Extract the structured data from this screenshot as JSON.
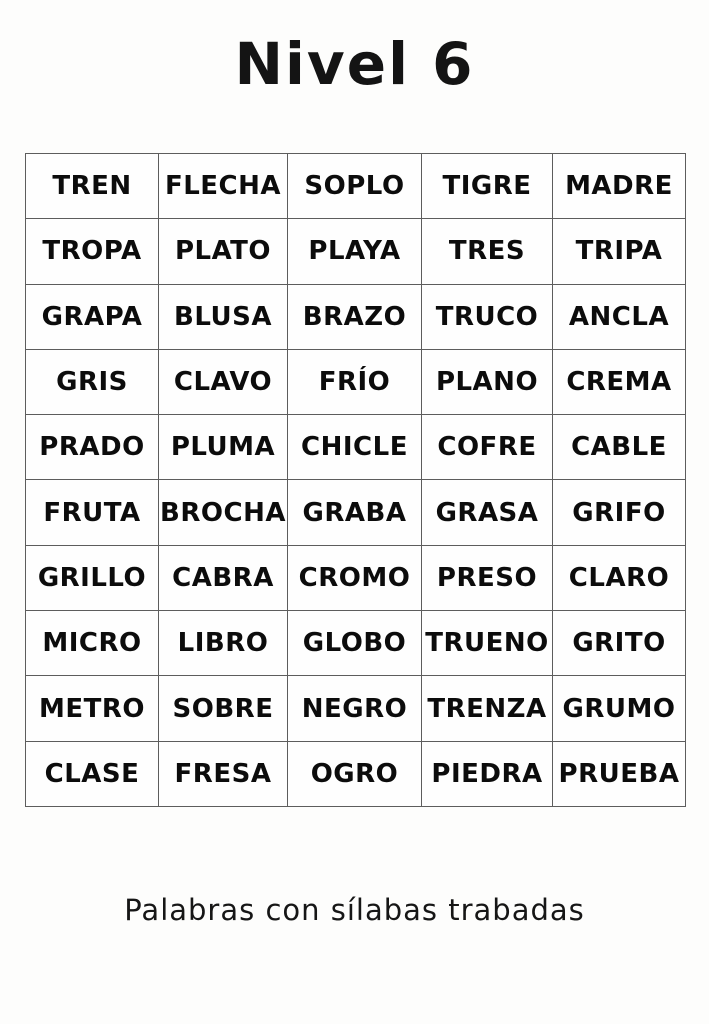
{
  "page": {
    "title": "Nivel 6",
    "caption": "Palabras con sílabas trabadas"
  },
  "grid": {
    "rows": [
      [
        "TREN",
        "FLECHA",
        "SOPLO",
        "TIGRE",
        "MADRE"
      ],
      [
        "TROPA",
        "PLATO",
        "PLAYA",
        "TRES",
        "TRIPA"
      ],
      [
        "GRAPA",
        "BLUSA",
        "BRAZO",
        "TRUCO",
        "ANCLA"
      ],
      [
        "GRIS",
        "CLAVO",
        "FRÍO",
        "PLANO",
        "CREMA"
      ],
      [
        "PRADO",
        "PLUMA",
        "CHICLE",
        "COFRE",
        "CABLE"
      ],
      [
        "FRUTA",
        "BROCHA",
        "GRABA",
        "GRASA",
        "GRIFO"
      ],
      [
        "GRILLO",
        "CABRA",
        "CROMO",
        "PRESO",
        "CLARO"
      ],
      [
        "MICRO",
        "LIBRO",
        "GLOBO",
        "TRUENO",
        "GRITO"
      ],
      [
        "METRO",
        "SOBRE",
        "NEGRO",
        "TRENZA",
        "GRUMO"
      ],
      [
        "CLASE",
        "FRESA",
        "OGRO",
        "PIEDRA",
        "PRUEBA"
      ]
    ]
  },
  "colors": {
    "background": "#fdfdfc",
    "border": "#5d5d5d",
    "text": "#0c0c0c"
  }
}
